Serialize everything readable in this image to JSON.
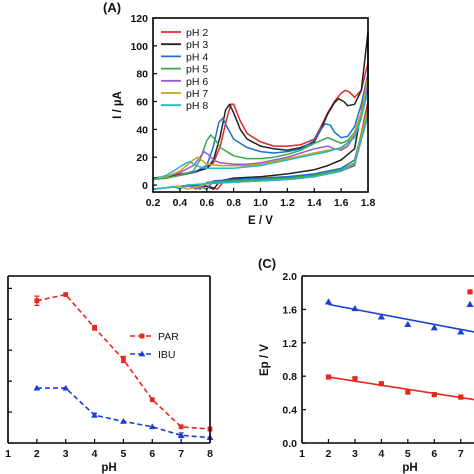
{
  "chart_data": [
    {
      "panel": "(A)",
      "type": "line",
      "xlabel": "E / V",
      "ylabel": "I / µA",
      "xlim": [
        0.2,
        1.8
      ],
      "ylim": [
        -5,
        120
      ],
      "xticks": [
        "0.2",
        "0.4",
        "0.6",
        "0.8",
        "1.0",
        "1.2",
        "1.4",
        "1.6",
        "1.8"
      ],
      "yticks": [
        "0",
        "20",
        "40",
        "60",
        "80",
        "100",
        "120"
      ],
      "legend_position": "top-left",
      "series": [
        {
          "name": "pH 2",
          "color": "#e0262b",
          "x": [
            0.2,
            0.3,
            0.4,
            0.5,
            0.6,
            0.65,
            0.7,
            0.75,
            0.78,
            0.8,
            0.85,
            0.9,
            1.0,
            1.1,
            1.2,
            1.3,
            1.4,
            1.45,
            1.5,
            1.55,
            1.6,
            1.63,
            1.66,
            1.7,
            1.75,
            1.8,
            1.8,
            1.7,
            1.6,
            1.5,
            1.4,
            1.2,
            1.0,
            0.8,
            0.72,
            0.68,
            0.62,
            0.5,
            0.4,
            0.3,
            0.2
          ],
          "y": [
            5,
            6,
            8,
            9,
            12,
            16,
            28,
            48,
            58,
            58,
            46,
            37,
            31,
            28,
            28,
            29,
            33,
            42,
            52,
            60,
            66,
            68,
            67,
            63,
            68,
            88,
            60,
            14,
            10,
            8,
            7,
            6,
            5,
            4,
            2,
            -3,
            -1,
            0,
            -1,
            -2,
            -3
          ]
        },
        {
          "name": "pH 3",
          "color": "#222222",
          "x": [
            0.2,
            0.3,
            0.4,
            0.5,
            0.6,
            0.65,
            0.7,
            0.74,
            0.77,
            0.8,
            0.85,
            0.9,
            1.0,
            1.1,
            1.2,
            1.3,
            1.4,
            1.45,
            1.5,
            1.55,
            1.58,
            1.62,
            1.65,
            1.7,
            1.75,
            1.8,
            1.8,
            1.7,
            1.6,
            1.5,
            1.4,
            1.2,
            1.0,
            0.8,
            0.7,
            0.65,
            0.6,
            0.5,
            0.4,
            0.3,
            0.2
          ],
          "y": [
            5,
            6,
            7,
            9,
            12,
            18,
            35,
            54,
            58,
            52,
            40,
            33,
            28,
            26,
            25,
            27,
            31,
            40,
            51,
            59,
            62,
            60,
            57,
            58,
            68,
            110,
            80,
            26,
            18,
            14,
            11,
            8,
            6,
            5,
            3,
            -3,
            -1,
            0,
            -1,
            -2,
            -3
          ]
        },
        {
          "name": "pH 4",
          "color": "#1e6fd0",
          "x": [
            0.2,
            0.3,
            0.4,
            0.5,
            0.6,
            0.65,
            0.69,
            0.72,
            0.75,
            0.8,
            0.9,
            1.0,
            1.1,
            1.2,
            1.3,
            1.4,
            1.45,
            1.48,
            1.52,
            1.55,
            1.6,
            1.65,
            1.7,
            1.75,
            1.8,
            1.8,
            1.7,
            1.6,
            1.5,
            1.4,
            1.2,
            1.0,
            0.8,
            0.65,
            0.6,
            0.55,
            0.5,
            0.4,
            0.3,
            0.2
          ],
          "y": [
            4,
            5,
            7,
            9,
            14,
            28,
            45,
            48,
            42,
            33,
            27,
            24,
            23,
            24,
            26,
            32,
            40,
            44,
            43,
            38,
            34,
            35,
            42,
            58,
            80,
            55,
            18,
            12,
            10,
            8,
            6,
            5,
            4,
            3,
            -3,
            -1,
            0,
            -1,
            -2,
            -3
          ]
        },
        {
          "name": "pH 5",
          "color": "#3aa64a",
          "x": [
            0.2,
            0.3,
            0.4,
            0.5,
            0.55,
            0.6,
            0.63,
            0.66,
            0.7,
            0.8,
            0.9,
            1.0,
            1.1,
            1.2,
            1.3,
            1.4,
            1.5,
            1.55,
            1.6,
            1.65,
            1.7,
            1.75,
            1.8,
            1.8,
            1.7,
            1.6,
            1.5,
            1.4,
            1.2,
            1.0,
            0.8,
            0.6,
            0.55,
            0.5,
            0.4,
            0.3,
            0.2
          ],
          "y": [
            4,
            5,
            7,
            10,
            18,
            32,
            36,
            33,
            27,
            21,
            19,
            19,
            20,
            22,
            25,
            30,
            34,
            32,
            30,
            32,
            38,
            52,
            75,
            52,
            16,
            11,
            9,
            7,
            5,
            4,
            3,
            2,
            -3,
            -1,
            -1,
            -2,
            -3
          ]
        },
        {
          "name": "pH 6",
          "color": "#9b59d0",
          "x": [
            0.2,
            0.3,
            0.4,
            0.5,
            0.55,
            0.58,
            0.61,
            0.65,
            0.7,
            0.8,
            0.9,
            1.0,
            1.1,
            1.2,
            1.3,
            1.4,
            1.5,
            1.55,
            1.6,
            1.65,
            1.7,
            1.75,
            1.8,
            1.8,
            1.7,
            1.6,
            1.5,
            1.4,
            1.2,
            1.0,
            0.8,
            0.6,
            0.52,
            0.48,
            0.4,
            0.3,
            0.2
          ],
          "y": [
            4,
            6,
            9,
            14,
            20,
            24,
            22,
            18,
            16,
            15,
            15,
            16,
            18,
            20,
            23,
            26,
            28,
            26,
            25,
            28,
            36,
            52,
            72,
            50,
            15,
            10,
            8,
            6,
            4,
            3,
            2,
            1,
            -3,
            -1,
            -1,
            -2,
            -3
          ]
        },
        {
          "name": "pH 7",
          "color": "#c8a21a",
          "x": [
            0.2,
            0.3,
            0.4,
            0.45,
            0.5,
            0.53,
            0.56,
            0.6,
            0.7,
            0.8,
            0.9,
            1.0,
            1.1,
            1.2,
            1.3,
            1.4,
            1.5,
            1.6,
            1.65,
            1.7,
            1.75,
            1.8,
            1.8,
            1.7,
            1.6,
            1.5,
            1.4,
            1.2,
            1.0,
            0.8,
            0.6,
            0.5,
            0.46,
            0.4,
            0.3,
            0.2
          ],
          "y": [
            4,
            6,
            10,
            14,
            18,
            20,
            18,
            15,
            14,
            14,
            14,
            15,
            17,
            19,
            21,
            23,
            25,
            26,
            30,
            38,
            52,
            78,
            55,
            16,
            10,
            8,
            6,
            4,
            3,
            2,
            1,
            -2,
            -3,
            -1,
            -2,
            -3
          ]
        },
        {
          "name": "pH 8",
          "color": "#22b8c4",
          "x": [
            0.2,
            0.3,
            0.35,
            0.4,
            0.45,
            0.48,
            0.5,
            0.55,
            0.6,
            0.7,
            0.8,
            0.9,
            1.0,
            1.1,
            1.2,
            1.3,
            1.4,
            1.5,
            1.6,
            1.7,
            1.75,
            1.8,
            1.8,
            1.7,
            1.6,
            1.5,
            1.4,
            1.2,
            1.0,
            0.8,
            0.6,
            0.45,
            0.4,
            0.35,
            0.3,
            0.2
          ],
          "y": [
            4,
            7,
            10,
            13,
            16,
            17,
            15,
            13,
            12,
            12,
            12,
            13,
            14,
            16,
            18,
            20,
            22,
            24,
            27,
            34,
            48,
            68,
            50,
            15,
            10,
            8,
            6,
            4,
            3,
            2,
            1,
            0,
            -3,
            -1,
            -2,
            -3
          ]
        }
      ]
    },
    {
      "panel": "",
      "type": "line",
      "xlabel": "pH",
      "ylabel": "",
      "xlim": [
        1,
        8
      ],
      "xticks": [
        "1",
        "2",
        "3",
        "4",
        "5",
        "6",
        "7",
        "8"
      ],
      "legend_position": "right",
      "series": [
        {
          "name": "PAR",
          "color": "#e8261e",
          "marker": "square",
          "x": [
            2,
            3,
            4,
            5,
            6,
            7,
            8
          ],
          "y": [
            0.92,
            0.96,
            0.745,
            0.54,
            0.28,
            0.105,
            0.09
          ],
          "err": [
            0.03,
            0.0,
            0.015,
            0.02,
            0.0,
            0.0,
            0.0
          ]
        },
        {
          "name": "IBU",
          "color": "#1b3fd6",
          "marker": "triangle",
          "x": [
            2,
            3,
            4,
            5,
            6,
            7,
            8
          ],
          "y": [
            0.355,
            0.355,
            0.18,
            0.14,
            0.105,
            0.05,
            0.035
          ],
          "err": [
            0.0,
            0.0,
            0.012,
            0.0,
            0.0,
            0.015,
            0.0
          ]
        }
      ]
    },
    {
      "panel": "(C)",
      "type": "scatter",
      "xlabel": "pH",
      "ylabel": "Ep / V",
      "xlim": [
        1,
        7.5
      ],
      "ylim": [
        0.0,
        2.0
      ],
      "xticks": [
        "1",
        "2",
        "3",
        "4",
        "5",
        "6",
        "7"
      ],
      "yticks": [
        "0.0",
        "0.4",
        "0.8",
        "1.2",
        "1.6",
        "2.0"
      ],
      "series": [
        {
          "color": "#1b3fd6",
          "marker": "triangle",
          "x": [
            2,
            3,
            4,
            5,
            6,
            7
          ],
          "y": [
            1.69,
            1.61,
            1.51,
            1.42,
            1.38,
            1.33
          ],
          "fit": [
            1.66,
            1.33
          ]
        },
        {
          "color": "#e8261e",
          "marker": "square",
          "x": [
            2,
            3,
            4,
            5,
            6,
            7
          ],
          "y": [
            0.79,
            0.77,
            0.71,
            0.61,
            0.58,
            0.55
          ],
          "fit": [
            0.79,
            0.52
          ]
        }
      ],
      "legend_markers": [
        {
          "color": "#e8261e",
          "marker": "square",
          "y": 1.81
        },
        {
          "color": "#1b3fd6",
          "marker": "triangle",
          "y": 1.66
        }
      ]
    }
  ]
}
